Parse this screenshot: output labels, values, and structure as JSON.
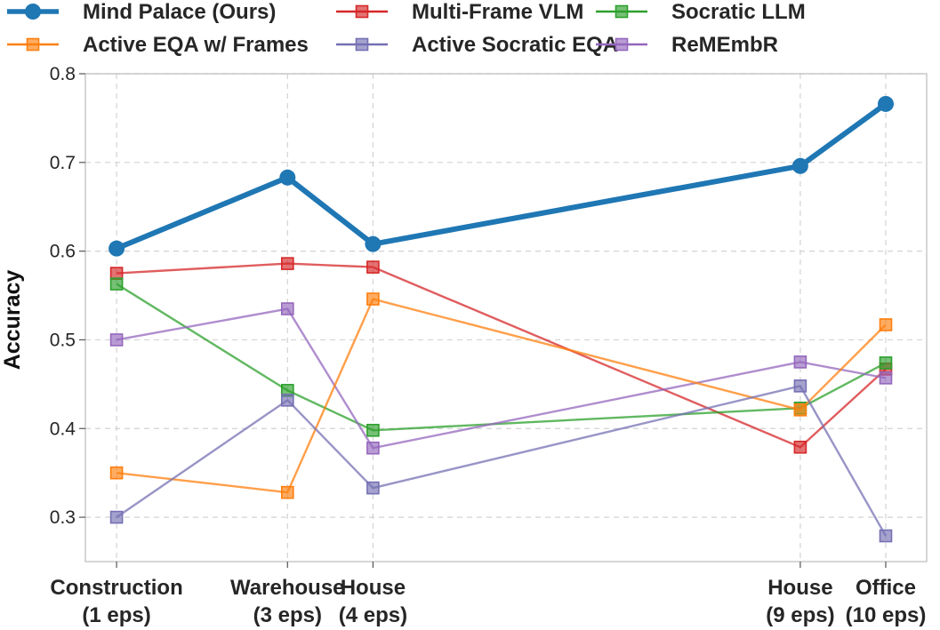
{
  "chart_data": {
    "type": "line",
    "ylabel": "Accuracy",
    "ylim": [
      0.25,
      0.8
    ],
    "yticks": [
      0.3,
      0.4,
      0.5,
      0.6,
      0.7,
      0.8
    ],
    "ytick_labels": [
      "0.3",
      "0.4",
      "0.5",
      "0.6",
      "0.7",
      "0.8"
    ],
    "x": [
      1,
      3,
      4,
      9,
      10
    ],
    "xlim": [
      0,
      10.5
    ],
    "categories": [
      {
        "line1": "Construction",
        "line2": "(1 eps)"
      },
      {
        "line1": "Warehouse",
        "line2": "(3 eps)"
      },
      {
        "line1": "House",
        "line2": "(4 eps)"
      },
      {
        "line1": "House",
        "line2": "(9 eps)"
      },
      {
        "line1": "Office",
        "line2": "(10 eps)"
      }
    ],
    "grid": true,
    "legend_position": "top",
    "series": [
      {
        "name": "Mind Palace (Ours)",
        "color": "#1f77b4",
        "marker": "circle",
        "emphasis": true,
        "values": [
          0.603,
          0.683,
          0.608,
          0.696,
          0.766
        ]
      },
      {
        "name": "Multi-Frame VLM",
        "color": "#d62728",
        "marker": "square",
        "values": [
          0.575,
          0.586,
          0.582,
          0.379,
          0.467
        ]
      },
      {
        "name": "Socratic LLM",
        "color": "#2ca02c",
        "marker": "square",
        "values": [
          0.563,
          0.443,
          0.398,
          0.423,
          0.474
        ]
      },
      {
        "name": "ReMEmbR",
        "color": "#9467bd",
        "marker": "square",
        "values": [
          0.5,
          0.535,
          0.378,
          0.475,
          0.457
        ]
      },
      {
        "name": "Active EQA w/ Frames",
        "color": "#ff7f0e",
        "marker": "square",
        "values": [
          0.35,
          0.328,
          0.546,
          0.421,
          0.517
        ]
      },
      {
        "name": "Active Socratic EQA",
        "color": "#7570b3",
        "marker": "square",
        "values": [
          0.3,
          0.432,
          0.333,
          0.448,
          0.279
        ]
      }
    ],
    "legend_order": [
      0,
      4,
      1,
      5,
      2,
      3
    ]
  }
}
